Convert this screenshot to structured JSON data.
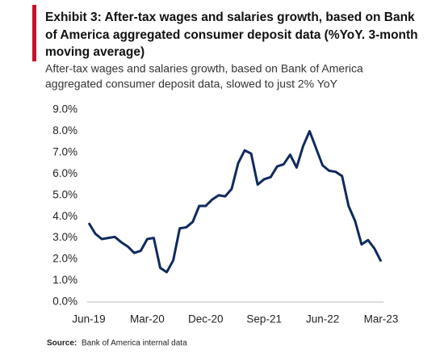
{
  "chart_data": {
    "type": "line",
    "title_lines": [
      "Exhibit 3: After-tax wages and salaries growth, based on Bank",
      "of America aggregated consumer deposit data (%YoY. 3-month",
      "moving average)"
    ],
    "subtitle_lines": [
      "After-tax wages and salaries growth, based on Bank of America",
      "aggregated consumer deposit data, slowed to just 2% YoY"
    ],
    "categories": [
      "Jun-19",
      null,
      null,
      null,
      null,
      null,
      null,
      null,
      null,
      "Mar-20",
      null,
      null,
      null,
      null,
      null,
      null,
      null,
      null,
      "Dec-20",
      null,
      null,
      null,
      null,
      null,
      null,
      null,
      null,
      "Sep-21",
      null,
      null,
      null,
      null,
      null,
      null,
      null,
      null,
      "Jun-22",
      null,
      null,
      null,
      null,
      null,
      null,
      null,
      null,
      "Mar-23"
    ],
    "series": [
      {
        "color": "#0f2a5e",
        "values": [
          3.7,
          3.2,
          2.95,
          3.0,
          3.05,
          2.8,
          2.6,
          2.3,
          2.4,
          2.95,
          3.0,
          1.6,
          1.4,
          1.95,
          3.45,
          3.5,
          3.75,
          4.5,
          4.5,
          4.8,
          5.0,
          4.95,
          5.3,
          6.5,
          7.1,
          6.95,
          5.5,
          5.75,
          5.85,
          6.35,
          6.45,
          6.9,
          6.3,
          7.3,
          8.0,
          7.2,
          6.4,
          6.15,
          6.1,
          5.9,
          4.5,
          3.8,
          2.7,
          2.9,
          2.5,
          1.9
        ]
      }
    ],
    "ylim": [
      0,
      9
    ],
    "yticks": [
      {
        "value": 0,
        "label": "0.0%"
      },
      {
        "value": 1,
        "label": "1.0%"
      },
      {
        "value": 2,
        "label": "2.0%"
      },
      {
        "value": 3,
        "label": "3.0%"
      },
      {
        "value": 4,
        "label": "4.0%"
      },
      {
        "value": 5,
        "label": "5.0%"
      },
      {
        "value": 6,
        "label": "6.0%"
      },
      {
        "value": 7,
        "label": "7.0%"
      },
      {
        "value": 8,
        "label": "8.0%"
      },
      {
        "value": 9,
        "label": "9.0%"
      }
    ],
    "source_label": "Source:",
    "source_text": "Bank of America internal data"
  }
}
